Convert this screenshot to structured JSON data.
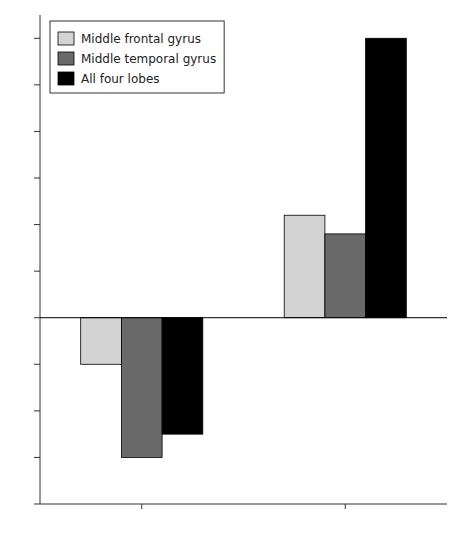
{
  "chart_data": {
    "type": "bar",
    "categories": [
      null,
      null
    ],
    "series": [
      {
        "name": "Middle frontal gyrus",
        "color": "#d3d3d3",
        "values": [
          -0.1,
          0.22
        ]
      },
      {
        "name": "Middle temporal gyrus",
        "color": "#696969",
        "values": [
          -0.3,
          0.18
        ]
      },
      {
        "name": "All four lobes",
        "color": "#000000",
        "values": [
          -0.25,
          0.6
        ]
      }
    ],
    "ylim": [
      -0.4,
      0.65
    ],
    "yticks": [
      -0.4,
      -0.3,
      -0.2,
      -0.1,
      0.0,
      0.1,
      0.2,
      0.3,
      0.4,
      0.5,
      0.6
    ],
    "tick_labels": false,
    "legend": "upper-left"
  }
}
